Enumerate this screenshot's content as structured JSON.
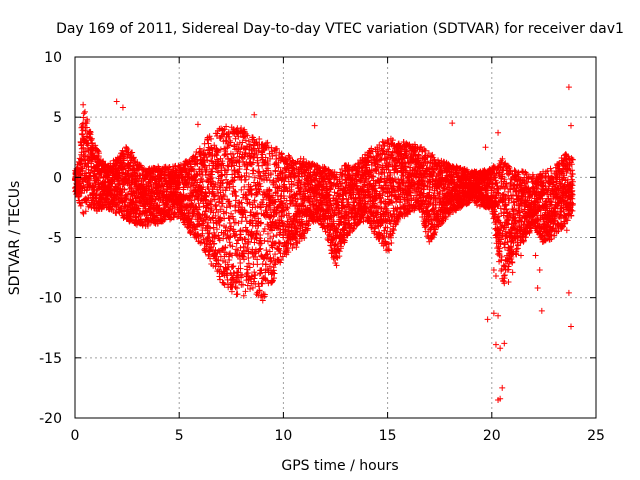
{
  "chart_data": {
    "type": "scatter",
    "title": "Day 169 of 2011, Sidereal Day-to-day VTEC variation (SDTVAR) for receiver dav1",
    "xlabel": "GPS time / hours",
    "ylabel": "SDTVAR / TECUs",
    "xlim": [
      0,
      25
    ],
    "ylim": [
      -20,
      10
    ],
    "xticks": [
      0,
      5,
      10,
      15,
      20,
      25
    ],
    "yticks": [
      -20,
      -15,
      -10,
      -5,
      0,
      5,
      10
    ],
    "xtick_labels": [
      "0",
      "5",
      "10",
      "15",
      "20",
      "25"
    ],
    "ytick_labels": [
      "-20",
      "-15",
      "-10",
      "-5",
      "0",
      "5",
      "10"
    ],
    "grid": true,
    "marker": "+",
    "series_color": "#ff0000",
    "series": [
      {
        "name": "SDTVAR",
        "envelope_x": [
          0,
          0.2,
          0.4,
          0.7,
          1.0,
          1.5,
          2.0,
          2.5,
          3.0,
          3.5,
          4.0,
          4.5,
          5.0,
          5.5,
          6.0,
          6.5,
          7.0,
          7.5,
          8.0,
          8.5,
          9.0,
          9.5,
          10.0,
          10.5,
          11.0,
          11.5,
          12.0,
          12.5,
          13.0,
          13.5,
          14.0,
          14.5,
          15.0,
          15.5,
          16.0,
          16.5,
          17.0,
          17.5,
          18.0,
          18.5,
          19.0,
          19.5,
          20.0,
          20.5,
          21.0,
          21.5,
          22.0,
          22.5,
          23.0,
          23.5,
          23.9
        ],
        "envelope_upper": [
          0.5,
          1.5,
          6.2,
          4.0,
          2.5,
          1.0,
          1.5,
          3.0,
          1.2,
          0.8,
          1.0,
          0.8,
          1.0,
          1.5,
          2.5,
          3.5,
          4.0,
          4.2,
          4.0,
          3.5,
          3.0,
          2.5,
          2.0,
          1.5,
          1.5,
          1.0,
          0.8,
          0.5,
          1.0,
          1.0,
          2.0,
          2.8,
          3.2,
          3.0,
          2.8,
          2.6,
          2.0,
          1.5,
          1.0,
          0.8,
          0.5,
          0.5,
          0.8,
          1.5,
          0.6,
          0.5,
          0.2,
          0.5,
          0.8,
          2.0,
          1.5
        ],
        "envelope_lower": [
          -1.5,
          -2.0,
          -3.0,
          -2.5,
          -2.8,
          -2.5,
          -3.0,
          -3.5,
          -4.0,
          -4.0,
          -3.8,
          -3.5,
          -3.2,
          -4.5,
          -5.5,
          -7.0,
          -8.5,
          -9.5,
          -9.8,
          -9.5,
          -10.2,
          -8.5,
          -6.5,
          -6.0,
          -5.0,
          -3.5,
          -4.5,
          -7.5,
          -5.0,
          -4.0,
          -3.5,
          -5.0,
          -6.5,
          -3.5,
          -3.0,
          -2.5,
          -5.5,
          -4.0,
          -3.0,
          -2.5,
          -2.0,
          -2.5,
          -2.5,
          -9.0,
          -7.0,
          -5.5,
          -4.0,
          -5.5,
          -5.0,
          -4.0,
          -3.0
        ],
        "outliers": [
          {
            "x": 2.0,
            "y": 6.3
          },
          {
            "x": 2.3,
            "y": 5.8
          },
          {
            "x": 5.9,
            "y": 4.4
          },
          {
            "x": 8.6,
            "y": 5.2
          },
          {
            "x": 11.5,
            "y": 4.3
          },
          {
            "x": 18.1,
            "y": 4.5
          },
          {
            "x": 19.7,
            "y": 2.5
          },
          {
            "x": 20.3,
            "y": 3.7
          },
          {
            "x": 20.1,
            "y": -7.7
          },
          {
            "x": 20.6,
            "y": -8.8
          },
          {
            "x": 21.0,
            "y": -7.9
          },
          {
            "x": 19.8,
            "y": -11.8
          },
          {
            "x": 20.1,
            "y": -11.3
          },
          {
            "x": 20.3,
            "y": -11.5
          },
          {
            "x": 20.2,
            "y": -13.9
          },
          {
            "x": 20.4,
            "y": -14.2
          },
          {
            "x": 20.6,
            "y": -13.8
          },
          {
            "x": 20.5,
            "y": -17.5
          },
          {
            "x": 20.3,
            "y": -18.5
          },
          {
            "x": 20.4,
            "y": -18.4
          },
          {
            "x": 22.3,
            "y": -7.7
          },
          {
            "x": 22.2,
            "y": -9.2
          },
          {
            "x": 22.4,
            "y": -11.1
          },
          {
            "x": 23.7,
            "y": 7.5
          },
          {
            "x": 23.8,
            "y": 4.3
          },
          {
            "x": 23.7,
            "y": -9.6
          },
          {
            "x": 23.8,
            "y": -12.4
          },
          {
            "x": 21.4,
            "y": -6.5
          },
          {
            "x": 22.1,
            "y": -6.5
          },
          {
            "x": 23.6,
            "y": -4.4
          },
          {
            "x": 20.8,
            "y": -8.7
          },
          {
            "x": 20.2,
            "y": -8.2
          }
        ]
      }
    ]
  }
}
